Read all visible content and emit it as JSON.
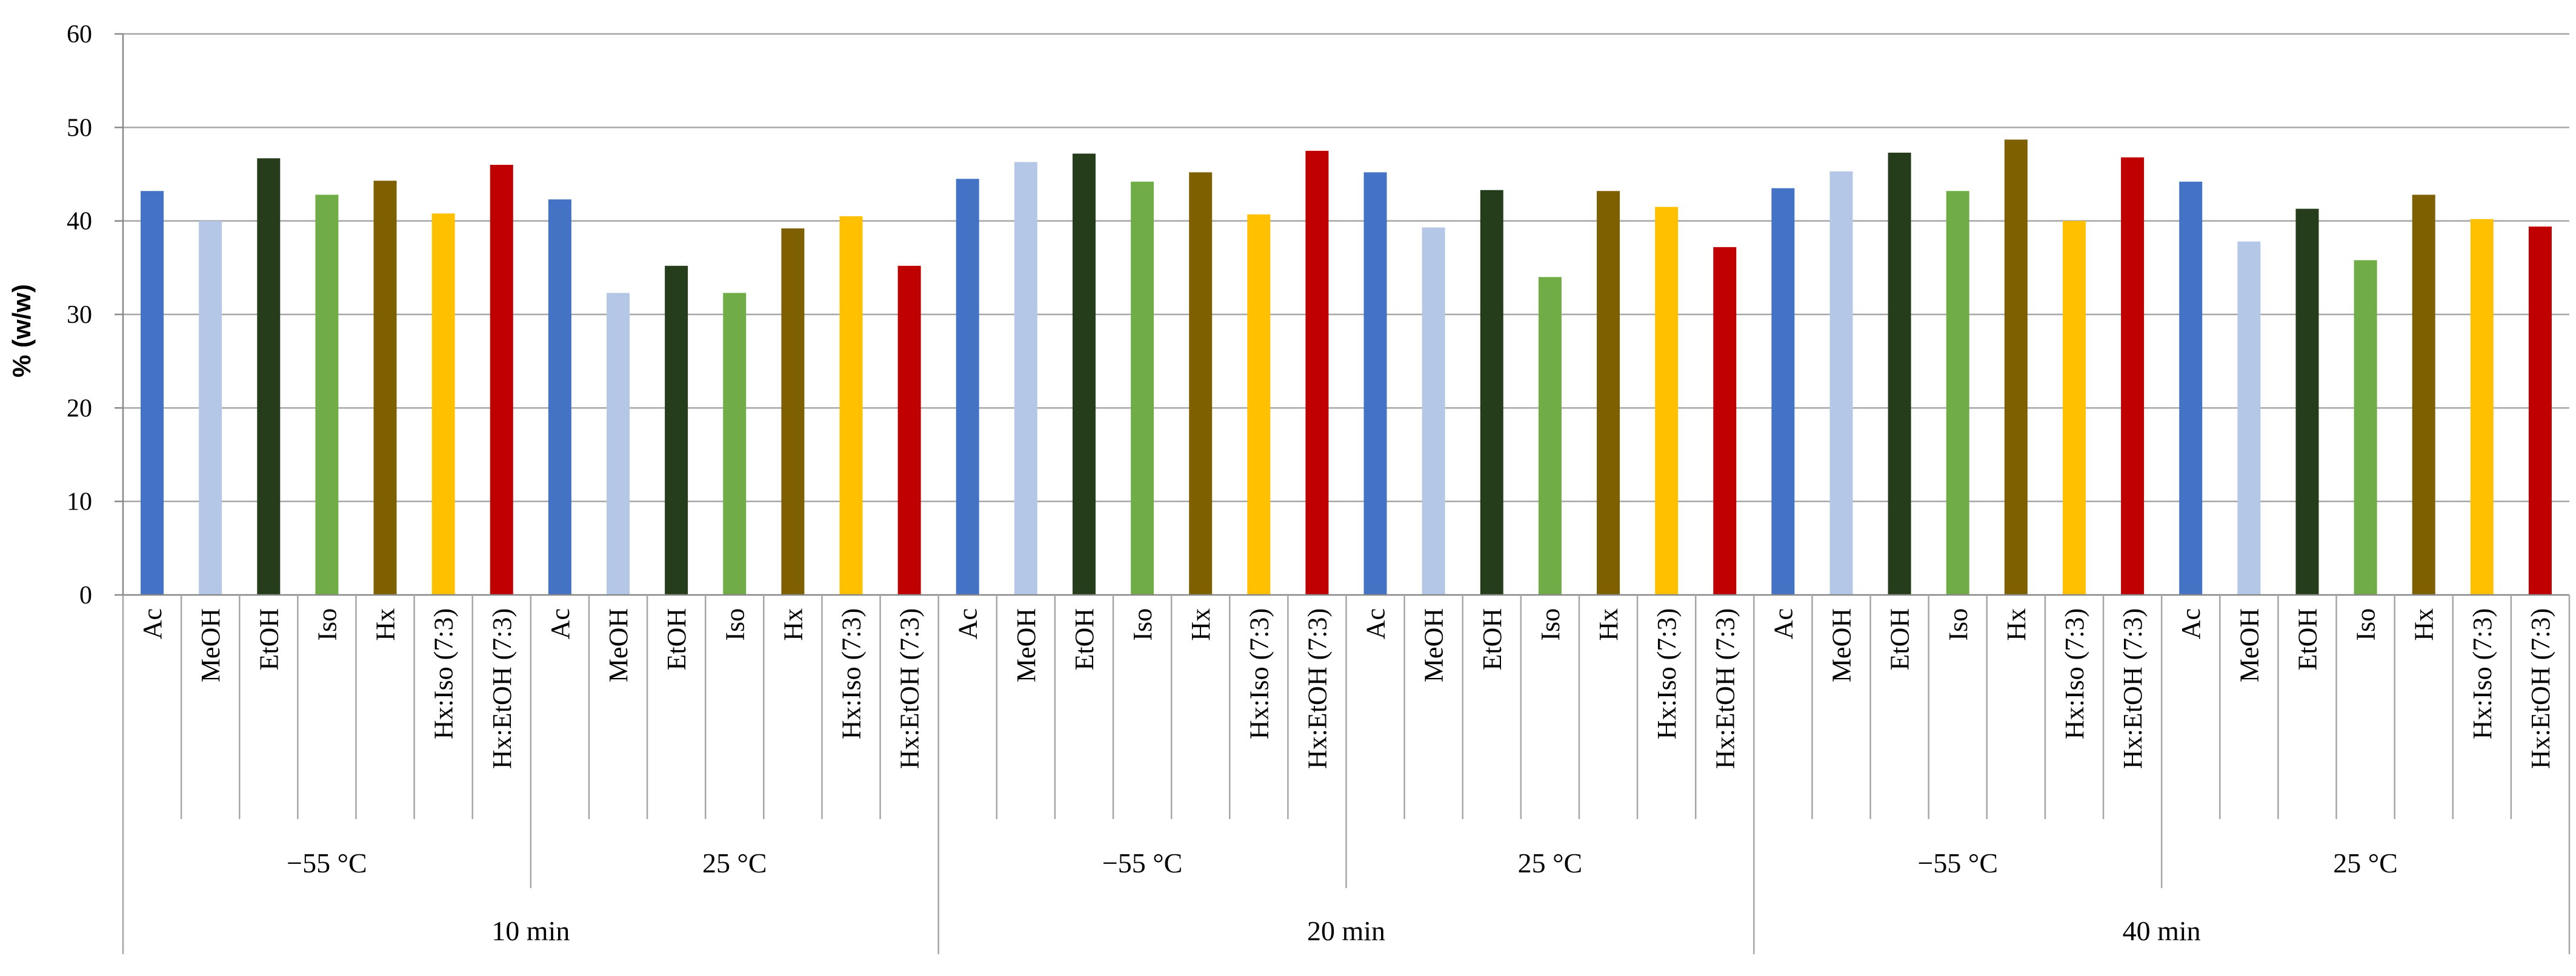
{
  "chart_data": {
    "type": "bar",
    "title": "",
    "ylabel": "% (w/w)",
    "xlabel": "",
    "ylim": [
      0,
      60
    ],
    "yticks": [
      0,
      10,
      20,
      30,
      40,
      50,
      60
    ],
    "grid": true,
    "legend": "none",
    "solvents": [
      "Ac",
      "MeOH",
      "EtOH",
      "Iso",
      "Hx",
      "Hx:Iso (7:3)",
      "Hx:EtOH (7:3)"
    ],
    "colors": [
      "#4472C4",
      "#B4C7E7",
      "#263D1B",
      "#70AD47",
      "#7F6000",
      "#FFC000",
      "#C00000"
    ],
    "times": [
      "10 min",
      "20 min",
      "40 min"
    ],
    "temperatures": [
      "−55 °C",
      "25 °C"
    ],
    "groups": [
      {
        "time": "10 min",
        "temperature": "−55 °C",
        "values": [
          43.2,
          40.0,
          46.7,
          42.8,
          44.3,
          40.8,
          46.0
        ]
      },
      {
        "time": "10 min",
        "temperature": "25 °C",
        "values": [
          42.3,
          32.3,
          35.2,
          32.3,
          39.2,
          40.5,
          35.2
        ]
      },
      {
        "time": "20 min",
        "temperature": "−55 °C",
        "values": [
          44.5,
          46.3,
          47.2,
          44.2,
          45.2,
          40.7,
          47.5
        ]
      },
      {
        "time": "20 min",
        "temperature": "25 °C",
        "values": [
          45.2,
          39.3,
          43.3,
          34.0,
          43.2,
          41.5,
          37.2
        ]
      },
      {
        "time": "40 min",
        "temperature": "−55 °C",
        "values": [
          43.5,
          45.3,
          47.3,
          43.2,
          48.7,
          40.0,
          46.8
        ]
      },
      {
        "time": "40 min",
        "temperature": "25 °C",
        "values": [
          44.2,
          37.8,
          41.3,
          35.8,
          42.8,
          40.2,
          39.4
        ]
      }
    ]
  }
}
